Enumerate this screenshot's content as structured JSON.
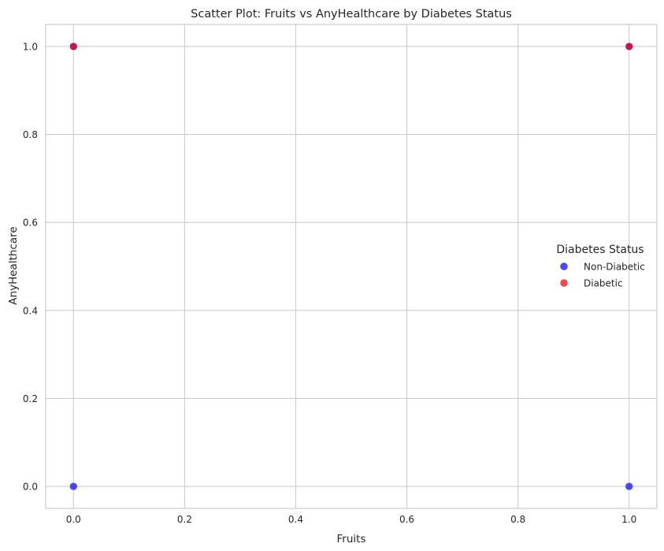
{
  "chart_data": {
    "type": "scatter",
    "title": "Scatter Plot: Fruits vs AnyHealthcare by Diabetes Status",
    "xlabel": "Fruits",
    "ylabel": "AnyHealthcare",
    "xlim": [
      -0.05,
      1.05
    ],
    "ylim": [
      -0.05,
      1.05
    ],
    "xticks": [
      "0.0",
      "0.2",
      "0.4",
      "0.6",
      "0.8",
      "1.0"
    ],
    "yticks": [
      "0.0",
      "0.2",
      "0.4",
      "0.6",
      "0.8",
      "1.0"
    ],
    "grid": true,
    "legend": {
      "title": "Diabetes Status",
      "placement": "center-right",
      "entries": [
        {
          "label": "Non-Diabetic",
          "color": "#4b4bf0"
        },
        {
          "label": "Diabetic",
          "color": "#f04b4b"
        }
      ]
    },
    "series": [
      {
        "name": "Non-Diabetic",
        "color": "#0000ff",
        "points": [
          [
            0,
            0
          ],
          [
            1,
            0
          ],
          [
            0,
            1
          ],
          [
            1,
            1
          ]
        ]
      },
      {
        "name": "Diabetic",
        "color": "#ff0000",
        "points": [
          [
            0,
            1
          ],
          [
            1,
            1
          ]
        ]
      }
    ]
  }
}
